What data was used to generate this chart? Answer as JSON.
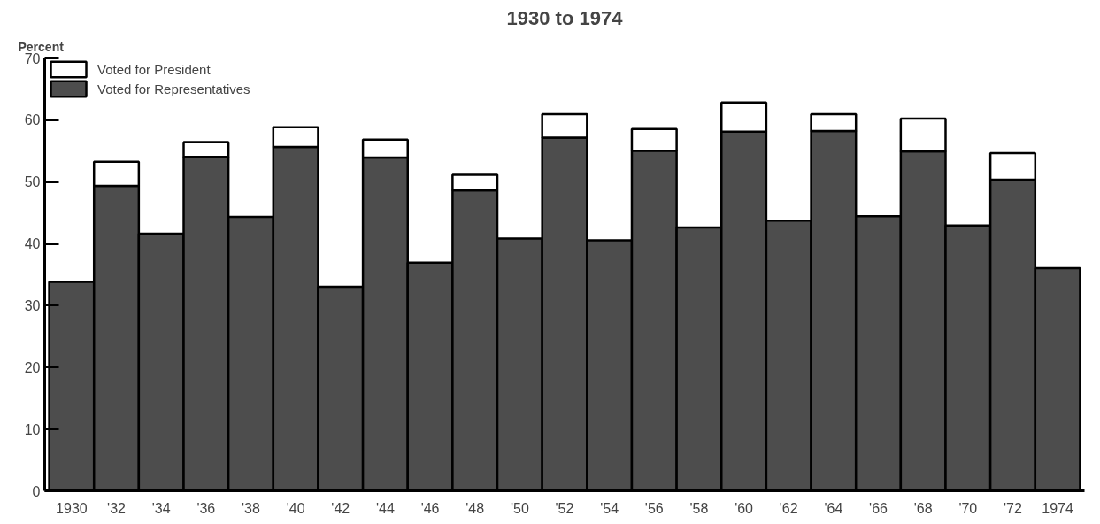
{
  "chart_data": {
    "type": "bar",
    "title": "1930 to 1974",
    "ylabel": "Percent",
    "stacked": true,
    "categories": [
      "1930",
      "'32",
      "'34",
      "'36",
      "'38",
      "'40",
      "'42",
      "'44",
      "'46",
      "'48",
      "'50",
      "'52",
      "'54",
      "'56",
      "'58",
      "'60",
      "'62",
      "'64",
      "'66",
      "'68",
      "'70",
      "'72",
      "1974"
    ],
    "series": [
      {
        "name": "Voted for Representatives",
        "color": "#4d4d4d",
        "values": [
          33.8,
          49.3,
          41.6,
          54.0,
          44.3,
          55.6,
          33.0,
          53.9,
          36.9,
          48.6,
          40.8,
          57.1,
          40.5,
          55.0,
          42.6,
          58.1,
          43.7,
          58.2,
          44.4,
          54.9,
          42.9,
          50.3,
          36.0
        ]
      },
      {
        "name": "Voted for President",
        "color": "#ffffff",
        "values": [
          null,
          3.9,
          null,
          2.4,
          null,
          3.2,
          null,
          2.9,
          null,
          2.5,
          null,
          3.8,
          null,
          3.5,
          null,
          4.7,
          null,
          2.7,
          null,
          5.3,
          null,
          4.3,
          null
        ]
      }
    ],
    "ylim": [
      0,
      70
    ],
    "yticks": [
      0,
      10,
      20,
      30,
      40,
      50,
      60,
      70
    ],
    "grid": false,
    "legend": "top left"
  }
}
